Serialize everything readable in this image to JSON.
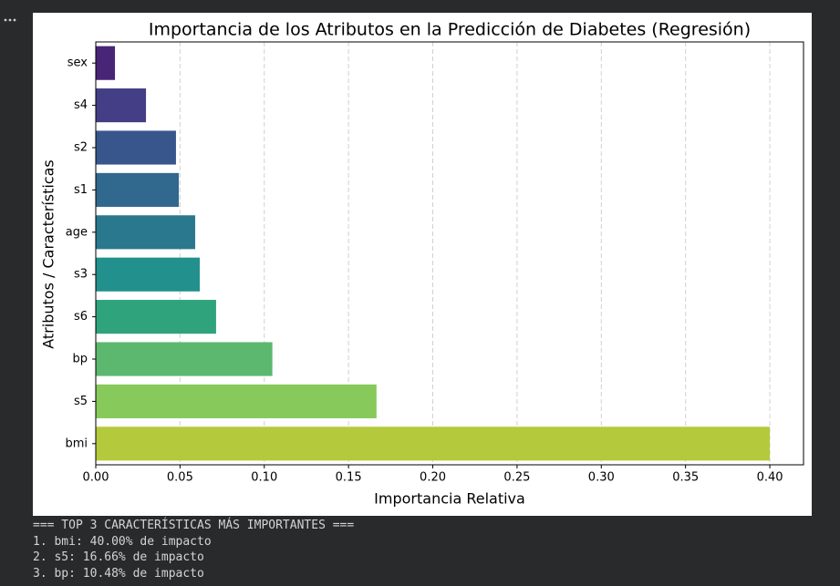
{
  "chart_data": {
    "type": "barh",
    "title": "Importancia de los Atributos en la Predicción de Diabetes (Regresión)",
    "x_label": "Importancia Relativa",
    "y_label": "Atributos / Características",
    "categories": [
      "sex",
      "s4",
      "s2",
      "s1",
      "age",
      "s3",
      "s6",
      "bp",
      "s5",
      "bmi"
    ],
    "values": [
      0.0114,
      0.0298,
      0.0476,
      0.0493,
      0.059,
      0.0617,
      0.0714,
      0.1048,
      0.1666,
      0.4
    ],
    "colors": [
      "#482576",
      "#433e85",
      "#39568c",
      "#31688e",
      "#2a788e",
      "#22908c",
      "#2ea37c",
      "#5cb86f",
      "#87c95a",
      "#b4ca3c"
    ],
    "xlim": [
      0,
      0.42
    ],
    "xticks": [
      {
        "value": 0,
        "label": "0.00"
      },
      {
        "value": 0.05,
        "label": "0.05"
      },
      {
        "value": 0.1,
        "label": "0.10"
      },
      {
        "value": 0.15,
        "label": "0.15"
      },
      {
        "value": 0.2,
        "label": "0.20"
      },
      {
        "value": 0.25,
        "label": "0.25"
      },
      {
        "value": 0.3,
        "label": "0.30"
      },
      {
        "value": 0.35,
        "label": "0.35"
      },
      {
        "value": 0.4,
        "label": "0.40"
      }
    ],
    "grid": true
  },
  "output": [
    "=== TOP 3 CARACTERÍSTICAS MÁS IMPORTANTES ===",
    "1. bmi: 40.00% de impacto",
    "2. s5: 16.66% de impacto",
    "3. bp: 10.48% de impacto"
  ]
}
